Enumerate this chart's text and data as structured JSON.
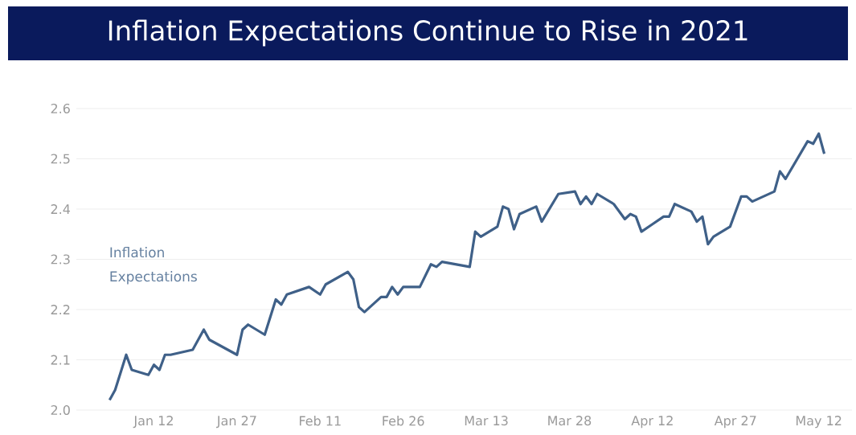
{
  "chart_data": {
    "type": "line",
    "title": "Inflation Expectations Continue to Rise in 2021",
    "x": [
      "2021-01-04",
      "2021-01-05",
      "2021-01-07",
      "2021-01-08",
      "2021-01-11",
      "2021-01-12",
      "2021-01-13",
      "2021-01-14",
      "2021-01-15",
      "2021-01-19",
      "2021-01-21",
      "2021-01-22",
      "2021-01-27",
      "2021-01-28",
      "2021-01-29",
      "2021-02-01",
      "2021-02-03",
      "2021-02-04",
      "2021-02-05",
      "2021-02-09",
      "2021-02-11",
      "2021-02-12",
      "2021-02-16",
      "2021-02-17",
      "2021-02-18",
      "2021-02-19",
      "2021-02-22",
      "2021-02-23",
      "2021-02-24",
      "2021-02-25",
      "2021-02-26",
      "2021-03-01",
      "2021-03-03",
      "2021-03-04",
      "2021-03-05",
      "2021-03-10",
      "2021-03-11",
      "2021-03-12",
      "2021-03-15",
      "2021-03-16",
      "2021-03-17",
      "2021-03-18",
      "2021-03-19",
      "2021-03-22",
      "2021-03-23",
      "2021-03-26",
      "2021-03-29",
      "2021-03-30",
      "2021-03-31",
      "2021-04-01",
      "2021-04-02",
      "2021-04-05",
      "2021-04-07",
      "2021-04-08",
      "2021-04-09",
      "2021-04-10",
      "2021-04-12",
      "2021-04-14",
      "2021-04-15",
      "2021-04-16",
      "2021-04-19",
      "2021-04-20",
      "2021-04-21",
      "2021-04-22",
      "2021-04-23",
      "2021-04-26",
      "2021-04-28",
      "2021-04-29",
      "2021-04-30",
      "2021-05-04",
      "2021-05-05",
      "2021-05-06",
      "2021-05-10",
      "2021-05-11",
      "2021-05-12",
      "2021-05-13"
    ],
    "series": [
      {
        "name": "Inflation Expectations",
        "color": "#3f6088",
        "values": [
          2.02,
          2.04,
          2.11,
          2.08,
          2.07,
          2.09,
          2.08,
          2.11,
          2.11,
          2.12,
          2.16,
          2.14,
          2.11,
          2.16,
          2.17,
          2.15,
          2.22,
          2.21,
          2.23,
          2.245,
          2.23,
          2.25,
          2.275,
          2.26,
          2.205,
          2.195,
          2.225,
          2.225,
          2.245,
          2.23,
          2.245,
          2.245,
          2.29,
          2.285,
          2.295,
          2.285,
          2.355,
          2.345,
          2.365,
          2.405,
          2.4,
          2.36,
          2.39,
          2.405,
          2.375,
          2.43,
          2.435,
          2.41,
          2.425,
          2.41,
          2.43,
          2.41,
          2.38,
          2.39,
          2.385,
          2.355,
          2.37,
          2.385,
          2.385,
          2.41,
          2.395,
          2.375,
          2.385,
          2.33,
          2.345,
          2.365,
          2.425,
          2.425,
          2.415,
          2.435,
          2.475,
          2.46,
          2.535,
          2.53,
          2.55,
          2.51
        ]
      }
    ],
    "xlim": [
      "2020-12-29",
      "2021-05-18"
    ],
    "xticks": [
      {
        "value": "2021-01-12",
        "label": "Jan 12"
      },
      {
        "value": "2021-01-27",
        "label": "Jan 27"
      },
      {
        "value": "2021-02-11",
        "label": "Feb 11"
      },
      {
        "value": "2021-02-26",
        "label": "Feb 26"
      },
      {
        "value": "2021-03-13",
        "label": "Mar 13"
      },
      {
        "value": "2021-03-28",
        "label": "Mar 28"
      },
      {
        "value": "2021-04-12",
        "label": "Apr 12"
      },
      {
        "value": "2021-04-27",
        "label": "Apr 27"
      },
      {
        "value": "2021-05-12",
        "label": "May 12"
      }
    ],
    "ylim": [
      2.0,
      2.6
    ],
    "yticks": [
      {
        "value": 2.0,
        "label": "2.0"
      },
      {
        "value": 2.1,
        "label": "2.1"
      },
      {
        "value": 2.2,
        "label": "2.2"
      },
      {
        "value": 2.3,
        "label": "2.3"
      },
      {
        "value": 2.4,
        "label": "2.4"
      },
      {
        "value": 2.5,
        "label": "2.5"
      },
      {
        "value": 2.6,
        "label": "2.6"
      }
    ],
    "grid": "y"
  }
}
